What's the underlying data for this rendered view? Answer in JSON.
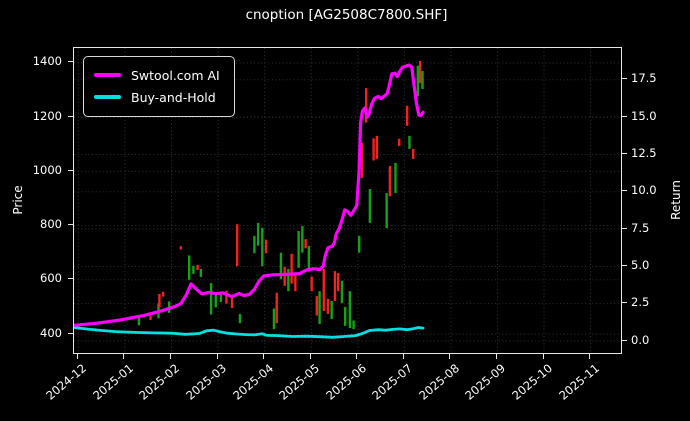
{
  "title": "cnoption [AG2508C7800.SHF]",
  "colors": {
    "background": "#000000",
    "text": "#ffffff",
    "grid": "#3a3a3a",
    "spine": "#e6e6e6",
    "ai_line": "#ff00ff",
    "hold_line": "#00e0e0",
    "candle_up": "#16a216",
    "candle_down": "#f52020"
  },
  "legend": {
    "items": [
      {
        "label": "Swtool.com AI",
        "color": "#ff00ff"
      },
      {
        "label": "Buy-and-Hold",
        "color": "#00e0e0"
      }
    ]
  },
  "chart_data": {
    "type": "line",
    "overlay": "candlestick",
    "title": "cnoption [AG2508C7800.SHF]",
    "grid": "on",
    "legend_position": "upper-left",
    "xlim": [
      -0.094,
      11.653
    ],
    "x_unit": "months-since-2024-12",
    "x_tick_labels": [
      "2024-12",
      "2025-01",
      "2025-02",
      "2025-03",
      "2025-04",
      "2025-05",
      "2025-06",
      "2025-07",
      "2025-08",
      "2025-09",
      "2025-10",
      "2025-11"
    ],
    "y_left": {
      "label": "Price",
      "ticks": [
        400,
        600,
        800,
        1000,
        1200,
        1400
      ],
      "lim": [
        330,
        1455
      ]
    },
    "y_right": {
      "label": "Return",
      "ticks": [
        0.0,
        2.5,
        5.0,
        7.5,
        10.0,
        12.5,
        15.0,
        17.5
      ],
      "lim": [
        -0.8,
        19.63
      ]
    },
    "series": [
      {
        "name": "Swtool.com AI",
        "color": "#ff00ff",
        "width": 3.2,
        "axis": "left",
        "points": [
          [
            -0.09,
            432
          ],
          [
            0.4,
            440
          ],
          [
            0.9,
            452
          ],
          [
            1.4,
            468
          ],
          [
            1.8,
            486
          ],
          [
            2.05,
            500
          ],
          [
            2.2,
            512
          ],
          [
            2.32,
            545
          ],
          [
            2.42,
            585
          ],
          [
            2.52,
            568
          ],
          [
            2.65,
            548
          ],
          [
            2.8,
            553
          ],
          [
            2.95,
            549
          ],
          [
            3.1,
            552
          ],
          [
            3.3,
            538
          ],
          [
            3.45,
            550
          ],
          [
            3.55,
            542
          ],
          [
            3.67,
            546
          ],
          [
            3.78,
            565
          ],
          [
            3.88,
            595
          ],
          [
            3.98,
            614
          ],
          [
            4.15,
            618
          ],
          [
            4.45,
            620
          ],
          [
            4.75,
            623
          ],
          [
            4.9,
            636
          ],
          [
            5.05,
            641
          ],
          [
            5.18,
            638
          ],
          [
            5.26,
            650
          ],
          [
            5.3,
            688
          ],
          [
            5.36,
            718
          ],
          [
            5.45,
            724
          ],
          [
            5.5,
            738
          ],
          [
            5.54,
            770
          ],
          [
            5.6,
            788
          ],
          [
            5.66,
            820
          ],
          [
            5.72,
            858
          ],
          [
            5.78,
            852
          ],
          [
            5.85,
            838
          ],
          [
            5.92,
            856
          ],
          [
            5.98,
            874
          ],
          [
            6.03,
            1010
          ],
          [
            6.06,
            1180
          ],
          [
            6.1,
            1222
          ],
          [
            6.15,
            1234
          ],
          [
            6.2,
            1200
          ],
          [
            6.24,
            1210
          ],
          [
            6.3,
            1248
          ],
          [
            6.36,
            1270
          ],
          [
            6.44,
            1276
          ],
          [
            6.5,
            1268
          ],
          [
            6.56,
            1276
          ],
          [
            6.63,
            1286
          ],
          [
            6.68,
            1318
          ],
          [
            6.73,
            1360
          ],
          [
            6.8,
            1362
          ],
          [
            6.85,
            1350
          ],
          [
            6.9,
            1368
          ],
          [
            6.96,
            1384
          ],
          [
            7.03,
            1388
          ],
          [
            7.1,
            1392
          ],
          [
            7.16,
            1384
          ],
          [
            7.2,
            1330
          ],
          [
            7.26,
            1252
          ],
          [
            7.31,
            1208
          ],
          [
            7.36,
            1206
          ],
          [
            7.4,
            1218
          ]
        ]
      },
      {
        "name": "Buy-and-Hold",
        "color": "#00e0e0",
        "width": 2.8,
        "axis": "left",
        "points": [
          [
            -0.09,
            424
          ],
          [
            0.2,
            418
          ],
          [
            0.5,
            413
          ],
          [
            0.8,
            409
          ],
          [
            1.2,
            406
          ],
          [
            1.6,
            404
          ],
          [
            2.0,
            403
          ],
          [
            2.3,
            399
          ],
          [
            2.6,
            402
          ],
          [
            2.75,
            412
          ],
          [
            2.9,
            414
          ],
          [
            3.05,
            408
          ],
          [
            3.2,
            403
          ],
          [
            3.4,
            400
          ],
          [
            3.6,
            398
          ],
          [
            3.8,
            397
          ],
          [
            3.95,
            401
          ],
          [
            4.05,
            395
          ],
          [
            4.3,
            394
          ],
          [
            4.6,
            391
          ],
          [
            4.9,
            392
          ],
          [
            5.2,
            390
          ],
          [
            5.45,
            388
          ],
          [
            5.7,
            391
          ],
          [
            5.95,
            394
          ],
          [
            6.1,
            402
          ],
          [
            6.25,
            413
          ],
          [
            6.45,
            416
          ],
          [
            6.6,
            414
          ],
          [
            6.75,
            417
          ],
          [
            6.9,
            419
          ],
          [
            7.05,
            416
          ],
          [
            7.2,
            420
          ],
          [
            7.3,
            424
          ],
          [
            7.4,
            422
          ]
        ]
      }
    ],
    "candles": [
      [
        1.3,
        432,
        468,
        "g"
      ],
      [
        1.55,
        452,
        468,
        "r"
      ],
      [
        1.72,
        458,
        512,
        "g"
      ],
      [
        1.74,
        500,
        548,
        "r"
      ],
      [
        1.82,
        538,
        556,
        "r"
      ],
      [
        1.95,
        478,
        520,
        "g"
      ],
      [
        2.2,
        712,
        724,
        "r"
      ],
      [
        2.38,
        600,
        690,
        "g"
      ],
      [
        2.47,
        622,
        652,
        "g"
      ],
      [
        2.56,
        636,
        655,
        "r"
      ],
      [
        2.63,
        610,
        640,
        "g"
      ],
      [
        2.85,
        472,
        588,
        "g"
      ],
      [
        2.95,
        498,
        552,
        "g"
      ],
      [
        3.06,
        518,
        556,
        "g"
      ],
      [
        3.18,
        512,
        560,
        "r"
      ],
      [
        3.3,
        496,
        536,
        "r"
      ],
      [
        3.41,
        650,
        805,
        "r"
      ],
      [
        3.47,
        440,
        474,
        "g"
      ],
      [
        3.78,
        698,
        762,
        "g"
      ],
      [
        3.86,
        726,
        810,
        "g"
      ],
      [
        3.95,
        650,
        792,
        "g"
      ],
      [
        4.03,
        698,
        748,
        "r"
      ],
      [
        4.2,
        418,
        494,
        "g"
      ],
      [
        4.26,
        440,
        552,
        "r"
      ],
      [
        4.35,
        602,
        700,
        "g"
      ],
      [
        4.43,
        578,
        648,
        "r"
      ],
      [
        4.51,
        558,
        640,
        "g"
      ],
      [
        4.58,
        586,
        696,
        "r"
      ],
      [
        4.66,
        558,
        620,
        "r"
      ],
      [
        4.73,
        644,
        780,
        "g"
      ],
      [
        4.81,
        700,
        798,
        "g"
      ],
      [
        4.88,
        716,
        750,
        "r"
      ],
      [
        4.95,
        630,
        725,
        "g"
      ],
      [
        5.01,
        558,
        612,
        "r"
      ],
      [
        5.12,
        468,
        540,
        "r"
      ],
      [
        5.18,
        437,
        558,
        "g"
      ],
      [
        5.27,
        485,
        640,
        "r"
      ],
      [
        5.36,
        474,
        530,
        "r"
      ],
      [
        5.44,
        455,
        522,
        "g"
      ],
      [
        5.51,
        522,
        632,
        "r"
      ],
      [
        5.58,
        558,
        625,
        "r"
      ],
      [
        5.66,
        514,
        596,
        "g"
      ],
      [
        5.73,
        430,
        500,
        "g"
      ],
      [
        5.83,
        422,
        558,
        "g"
      ],
      [
        5.91,
        418,
        450,
        "g"
      ],
      [
        6.03,
        700,
        762,
        "g"
      ],
      [
        6.09,
        976,
        1105,
        "r"
      ],
      [
        6.18,
        1180,
        1307,
        "r"
      ],
      [
        6.26,
        810,
        935,
        "g"
      ],
      [
        6.34,
        1040,
        1122,
        "r"
      ],
      [
        6.41,
        1046,
        1131,
        "r"
      ],
      [
        6.62,
        790,
        920,
        "g"
      ],
      [
        6.69,
        908,
        1020,
        "r"
      ],
      [
        6.81,
        920,
        1031,
        "g"
      ],
      [
        6.89,
        1094,
        1120,
        "r"
      ],
      [
        7.06,
        1168,
        1242,
        "r"
      ],
      [
        7.11,
        1083,
        1131,
        "g"
      ],
      [
        7.19,
        1046,
        1083,
        "r"
      ],
      [
        7.29,
        1278,
        1390,
        "g"
      ],
      [
        7.34,
        1325,
        1407,
        "r"
      ],
      [
        7.39,
        1304,
        1370,
        "g"
      ]
    ]
  }
}
